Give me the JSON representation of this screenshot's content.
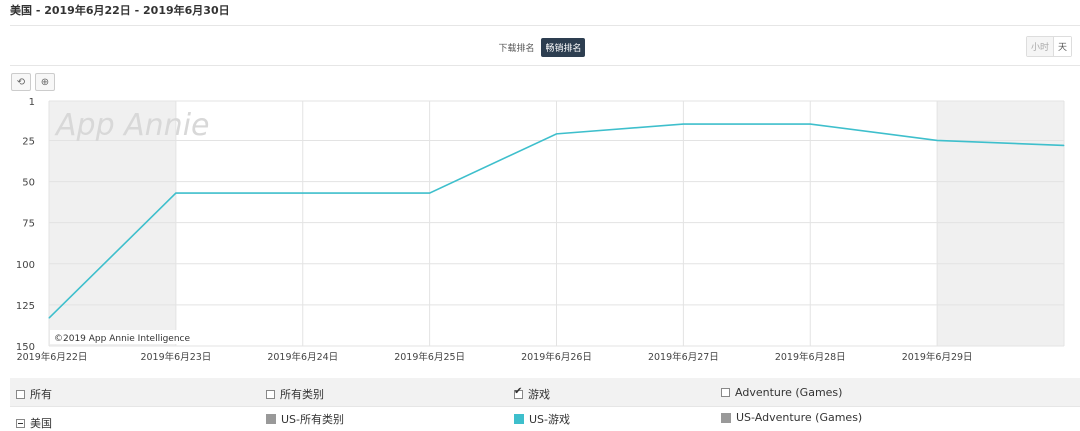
{
  "header": {
    "title": "美国 - 2019年6月22日 - 2019年6月30日"
  },
  "toggle": {
    "download_rank": "下载排名",
    "grossing_rank": "畅销排名"
  },
  "granularity": {
    "hour": "小时",
    "day": "天"
  },
  "toolbar": {
    "reset_icon": "⟲",
    "zoom_icon": "⊕"
  },
  "watermark": "App Annie",
  "copyright": "©2019 App Annie Intelligence",
  "colors": {
    "series": "#3ebfcc",
    "gray": "#999999",
    "weekend": "#f0f0f0"
  },
  "legend": {
    "row1": [
      {
        "label": "所有",
        "checked": false
      },
      {
        "label": "所有类别",
        "checked": false
      },
      {
        "label": "游戏",
        "checked": true
      },
      {
        "label": "Adventure (Games)",
        "checked": false
      }
    ],
    "row2": [
      {
        "label": "美国"
      },
      {
        "label": "US-所有类别",
        "color": "#999999"
      },
      {
        "label": "US-游戏",
        "color": "#3ebfcc"
      },
      {
        "label": "US-Adventure (Games)",
        "color": "#999999"
      }
    ]
  },
  "chart_data": {
    "type": "line",
    "x": [
      "2019年6月22日",
      "2019年6月23日",
      "2019年6月24日",
      "2019年6月25日",
      "2019年6月26日",
      "2019年6月27日",
      "2019年6月28日",
      "2019年6月29日",
      "2019年6月30日"
    ],
    "x_tick_labels": [
      "2019年6月22日",
      "2019年6月23日",
      "2019年6月24日",
      "2019年6月25日",
      "2019年6月26日",
      "2019年6月27日",
      "2019年6月28日",
      "2019年6月29日"
    ],
    "series": [
      {
        "name": "US-游戏",
        "values": [
          133,
          57,
          57,
          57,
          21,
          15,
          15,
          25,
          28
        ]
      }
    ],
    "y_reversed": true,
    "ylim": [
      1,
      150
    ],
    "yticks": [
      1,
      25,
      50,
      75,
      100,
      125,
      150
    ],
    "weekend_bands": [
      [
        "2019年6月22日",
        "2019年6月23日"
      ],
      [
        "2019年6月29日",
        "2019年6月30日"
      ]
    ],
    "grid": true
  }
}
